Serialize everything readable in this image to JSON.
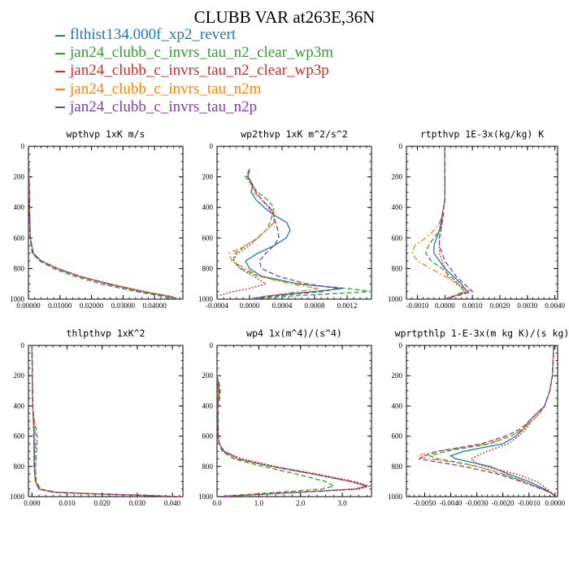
{
  "title": "CLUBB VAR at263E,36N",
  "legend": [
    {
      "label": "flthist134.000f_xp2_revert",
      "color": "#1f77b4",
      "dash": "solid"
    },
    {
      "label": "jan24_clubb_c_invrs_tau_n2_clear_wp3m",
      "color": "#2ca02c",
      "dash": "dashed"
    },
    {
      "label": "jan24_clubb_c_invrs_tau_n2_clear_wp3p",
      "color": "#d62728",
      "dash": "dotted"
    },
    {
      "label": "jan24_clubb_c_invrs_tau_n2m",
      "color": "#ff7f0e",
      "dash": "dashdot"
    },
    {
      "label": "jan24_clubb_c_invrs_tau_n2p",
      "color": "#7b3f9e",
      "dash": "dashed"
    }
  ],
  "chart_data": [
    {
      "type": "line",
      "title": "wpthvp  1xK m/s",
      "xlim": [
        0.0,
        0.049
      ],
      "ylim": [
        1000,
        0
      ],
      "xticks": [
        0.0,
        0.01,
        0.02,
        0.03,
        0.04
      ],
      "xticklabels": [
        "0.00000",
        "0.01000",
        "0.02000",
        "0.03000",
        "0.04000"
      ],
      "yticks": [
        0,
        200,
        400,
        600,
        800,
        1000
      ],
      "y": [
        0,
        200,
        400,
        600,
        700,
        750,
        800,
        850,
        900,
        950,
        980,
        1000
      ],
      "series": [
        {
          "values": [
            0,
            0.0002,
            0.0003,
            0.0006,
            0.0015,
            0.004,
            0.009,
            0.016,
            0.025,
            0.036,
            0.044,
            0.047
          ]
        },
        {
          "values": [
            0,
            0.0002,
            0.0003,
            0.0005,
            0.0012,
            0.0035,
            0.008,
            0.0145,
            0.023,
            0.034,
            0.042,
            0.046
          ]
        },
        {
          "values": [
            0,
            0.0002,
            0.0003,
            0.0006,
            0.0016,
            0.0042,
            0.0095,
            0.0165,
            0.026,
            0.037,
            0.045,
            0.048
          ]
        },
        {
          "values": [
            0,
            0.0002,
            0.0003,
            0.0006,
            0.0015,
            0.0041,
            0.0092,
            0.016,
            0.0255,
            0.0365,
            0.0445,
            0.0475
          ]
        },
        {
          "values": [
            0,
            0.0002,
            0.0003,
            0.0006,
            0.0015,
            0.004,
            0.0091,
            0.016,
            0.025,
            0.036,
            0.044,
            0.047
          ]
        }
      ]
    },
    {
      "type": "line",
      "title": "wp2thvp  1xK m^2/s^2",
      "xlim": [
        -0.0004,
        0.0015
      ],
      "ylim": [
        1000,
        0
      ],
      "xticks": [
        -0.0004,
        0.0,
        0.0004,
        0.0008,
        0.0012
      ],
      "xticklabels": [
        "-0.0004",
        "0.0000",
        "0.0004",
        "0.0008",
        "0.0012"
      ],
      "yticks": [
        0,
        200,
        400,
        600,
        800,
        1000
      ],
      "y": [
        150,
        200,
        250,
        300,
        350,
        400,
        450,
        500,
        550,
        600,
        650,
        700,
        750,
        800,
        850,
        900,
        930,
        950,
        980,
        1000
      ],
      "series": [
        {
          "values": [
            0,
            -2e-05,
            4e-05,
            2e-05,
            8e-05,
            0.00018,
            0.0003,
            0.00046,
            0.0005,
            0.00045,
            0.0003,
            0.0001,
            -5e-05,
            0.0,
            0.00015,
            0.0006,
            0.00115,
            0.0008,
            0.0002,
            0.0
          ]
        },
        {
          "values": [
            0,
            -5e-05,
            2e-05,
            0.0001,
            0.00022,
            0.0003,
            0.00028,
            0.00025,
            0.0002,
            0.0001,
            -5e-05,
            -0.00018,
            -0.0002,
            -0.0001,
            0.0001,
            0.0006,
            0.0012,
            0.0015,
            0.0005,
            0.0
          ]
        },
        {
          "values": [
            0,
            -3e-05,
            3e-05,
            8e-05,
            0.00015,
            0.00023,
            0.0003,
            0.0003,
            0.0002,
            0.0001,
            0.0,
            -0.00015,
            -0.0002,
            -0.00012,
            5e-05,
            0.0002,
            0.0,
            -0.0002,
            -0.0004,
            -0.0004
          ]
        },
        {
          "values": [
            0,
            -2e-05,
            2e-05,
            5e-05,
            0.00015,
            0.00025,
            0.00033,
            0.0003,
            0.0002,
            0.0001,
            -5e-05,
            -0.00025,
            -0.00022,
            -5e-05,
            0.00012,
            0.0005,
            0.00085,
            0.0006,
            0.0002,
            0.0
          ]
        },
        {
          "values": [
            0,
            -2e-05,
            3e-05,
            8e-05,
            0.00015,
            0.00025,
            0.0003,
            0.00032,
            0.00035,
            0.00036,
            0.0003,
            0.0002,
            0.00012,
            0.00015,
            0.00035,
            0.0007,
            0.0011,
            0.0009,
            0.0003,
            0.0
          ]
        }
      ]
    },
    {
      "type": "line",
      "title": "rtpthvp  1E-3x(kg/kg) K",
      "xlim": [
        -0.0014,
        0.0041
      ],
      "ylim": [
        1000,
        0
      ],
      "xticks": [
        -0.001,
        0.0,
        0.001,
        0.002,
        0.003,
        0.004
      ],
      "xticklabels": [
        "-0.0010",
        "0.0000",
        "0.0010",
        "0.0020",
        "0.0030",
        "0.0040"
      ],
      "yticks": [
        0,
        200,
        400,
        600,
        800,
        1000
      ],
      "y": [
        0,
        200,
        350,
        400,
        450,
        500,
        550,
        600,
        650,
        700,
        750,
        800,
        850,
        900,
        950,
        980,
        1000
      ],
      "series": [
        {
          "values": [
            0,
            0,
            0,
            -5e-05,
            -0.0001,
            -0.00015,
            -0.0002,
            -0.0003,
            -0.0004,
            -0.0004,
            -0.0002,
            0.0,
            0.0003,
            0.0006,
            0.0008,
            0.0003,
            0.0
          ]
        },
        {
          "values": [
            0,
            0,
            0,
            -5e-05,
            -5e-05,
            -0.0001,
            -0.0002,
            -0.0004,
            -0.0006,
            -0.0007,
            -0.0005,
            -0.0001,
            0.0002,
            0.0005,
            0.0007,
            0.0003,
            0.0
          ]
        },
        {
          "values": [
            0,
            0,
            0,
            -5e-05,
            -0.0001,
            -0.0001,
            -0.00015,
            -0.0002,
            -0.0002,
            -0.0002,
            -0.0001,
            0.0,
            0.0001,
            0.0004,
            0.0009,
            0.0003,
            0.0
          ]
        },
        {
          "values": [
            0,
            0,
            0,
            -5e-05,
            -0.0001,
            -0.0002,
            -0.0004,
            -0.0007,
            -0.0011,
            -0.0012,
            -0.001,
            -0.0005,
            0.0,
            0.0005,
            0.0008,
            0.0003,
            0.0
          ]
        },
        {
          "values": [
            0,
            0,
            0,
            -5e-05,
            -0.0001,
            -0.0001,
            -0.00015,
            -0.0002,
            -0.0002,
            -0.0001,
            0.0,
            0.0002,
            0.0004,
            0.0007,
            0.001,
            0.0004,
            0.0
          ]
        }
      ]
    },
    {
      "type": "line",
      "title": "thlpthvp  1xK^2",
      "xlim": [
        -0.001,
        0.043
      ],
      "ylim": [
        1000,
        0
      ],
      "xticks": [
        0.0,
        0.01,
        0.02,
        0.03,
        0.04
      ],
      "xticklabels": [
        "0.000",
        "0.010",
        "0.020",
        "0.030",
        "0.040"
      ],
      "yticks": [
        0,
        200,
        400,
        600,
        800,
        1000
      ],
      "y": [
        0,
        200,
        400,
        500,
        550,
        600,
        700,
        800,
        900,
        950,
        970,
        980,
        990,
        1000
      ],
      "series": [
        {
          "values": [
            0,
            0.0001,
            0.0002,
            0.0005,
            0.0006,
            0.0006,
            0.0007,
            0.0007,
            0.001,
            0.002,
            0.006,
            0.015,
            0.03,
            0.042
          ]
        },
        {
          "values": [
            0,
            0.0001,
            0.0002,
            0.0007,
            0.0012,
            0.0015,
            0.0013,
            0.001,
            0.0012,
            0.0025,
            0.007,
            0.017,
            0.032,
            0.042
          ]
        },
        {
          "values": [
            0,
            0.0001,
            0.0002,
            0.0004,
            0.0005,
            0.0005,
            0.0006,
            0.0006,
            0.001,
            0.002,
            0.006,
            0.015,
            0.03,
            0.042
          ]
        },
        {
          "values": [
            0,
            0.0001,
            0.0002,
            0.0006,
            0.0008,
            0.001,
            0.001,
            0.0009,
            0.0011,
            0.0022,
            0.0065,
            0.016,
            0.031,
            0.042
          ]
        },
        {
          "values": [
            0,
            0.0001,
            0.0002,
            0.0004,
            0.0005,
            0.0005,
            0.0006,
            0.0006,
            0.001,
            0.002,
            0.006,
            0.015,
            0.03,
            0.042
          ]
        }
      ]
    },
    {
      "type": "line",
      "title": "wp4  1x(m^4)/(s^4)",
      "xlim": [
        0.0,
        3.7
      ],
      "ylim": [
        1000,
        0
      ],
      "xticks": [
        0.0,
        1.0,
        2.0,
        3.0
      ],
      "xticklabels": [
        "0.0",
        "1.0",
        "2.0",
        "3.0"
      ],
      "yticks": [
        0,
        200,
        400,
        600,
        800,
        1000
      ],
      "y": [
        0,
        200,
        250,
        300,
        350,
        400,
        500,
        600,
        650,
        700,
        750,
        800,
        850,
        900,
        930,
        950,
        970,
        1000
      ],
      "series": [
        {
          "values": [
            0,
            0,
            0.03,
            0.05,
            0.04,
            0.02,
            0.02,
            0.03,
            0.05,
            0.15,
            0.5,
            1.3,
            2.3,
            3.2,
            3.6,
            3.3,
            2.0,
            0.0
          ]
        },
        {
          "values": [
            0,
            0,
            0.05,
            0.08,
            0.06,
            0.03,
            0.02,
            0.03,
            0.05,
            0.12,
            0.4,
            1.1,
            1.9,
            2.6,
            2.8,
            2.5,
            1.5,
            0.0
          ]
        },
        {
          "values": [
            0,
            0,
            0.02,
            0.03,
            0.02,
            0.01,
            0.01,
            0.02,
            0.05,
            0.18,
            0.6,
            1.4,
            2.4,
            3.3,
            3.65,
            3.4,
            2.1,
            0.0
          ]
        },
        {
          "values": [
            0,
            0,
            0.02,
            0.04,
            0.03,
            0.02,
            0.02,
            0.03,
            0.05,
            0.15,
            0.5,
            1.3,
            2.3,
            3.2,
            3.55,
            3.3,
            2.0,
            0.0
          ]
        },
        {
          "values": [
            0,
            0,
            0.03,
            0.05,
            0.04,
            0.02,
            0.02,
            0.03,
            0.06,
            0.16,
            0.5,
            1.3,
            2.3,
            3.2,
            3.6,
            3.3,
            2.0,
            0.0
          ]
        }
      ]
    },
    {
      "type": "line",
      "title": "wprtpthlp  1-E-3x(m kg K)/(s kg)",
      "xlim": [
        -0.0057,
        0.0001
      ],
      "ylim": [
        1000,
        0
      ],
      "xticks": [
        -0.005,
        -0.004,
        -0.003,
        -0.002,
        -0.001,
        0.0
      ],
      "xticklabels": [
        "-0.0050",
        "-0.0040",
        "-0.0030",
        "-0.0020",
        "-0.0010",
        "0.0000"
      ],
      "yticks": [
        0,
        200,
        400,
        600,
        800,
        1000
      ],
      "y": [
        0,
        200,
        300,
        400,
        450,
        500,
        550,
        600,
        650,
        700,
        730,
        750,
        780,
        800,
        850,
        900,
        950,
        980,
        1000
      ],
      "series": [
        {
          "values": [
            -5e-05,
            -0.0001,
            -0.0002,
            -0.0004,
            -0.0007,
            -0.001,
            -0.0012,
            -0.0015,
            -0.002,
            -0.0035,
            -0.004,
            -0.0038,
            -0.003,
            -0.0025,
            -0.0018,
            -0.001,
            -0.0004,
            -0.0001,
            0.0
          ]
        },
        {
          "values": [
            -5e-05,
            -0.0001,
            -0.0002,
            -0.0004,
            -0.0006,
            -0.0009,
            -0.0012,
            -0.0017,
            -0.0025,
            -0.0042,
            -0.0048,
            -0.0045,
            -0.0035,
            -0.003,
            -0.002,
            -0.0012,
            -0.0005,
            -0.0001,
            0.0
          ]
        },
        {
          "values": [
            -5e-05,
            -0.0001,
            -0.0002,
            -0.0004,
            -0.0006,
            -0.0009,
            -0.0011,
            -0.0014,
            -0.0018,
            -0.0026,
            -0.003,
            -0.0032,
            -0.003,
            -0.0027,
            -0.0015,
            -0.0007,
            -0.0003,
            -0.0001,
            0.0
          ]
        },
        {
          "values": [
            -5e-05,
            -0.0001,
            -0.0002,
            -0.0004,
            -0.0006,
            -0.0009,
            -0.0012,
            -0.0017,
            -0.0026,
            -0.0045,
            -0.0053,
            -0.0048,
            -0.0036,
            -0.003,
            -0.002,
            -0.0012,
            -0.0005,
            -0.0001,
            0.0
          ]
        },
        {
          "values": [
            -5e-05,
            -0.0001,
            -0.0002,
            -0.0004,
            -0.0007,
            -0.001,
            -0.0013,
            -0.0019,
            -0.0028,
            -0.0045,
            -0.005,
            -0.0052,
            -0.0042,
            -0.0035,
            -0.0022,
            -0.0013,
            -0.0005,
            -0.0001,
            0.0
          ]
        }
      ]
    }
  ]
}
